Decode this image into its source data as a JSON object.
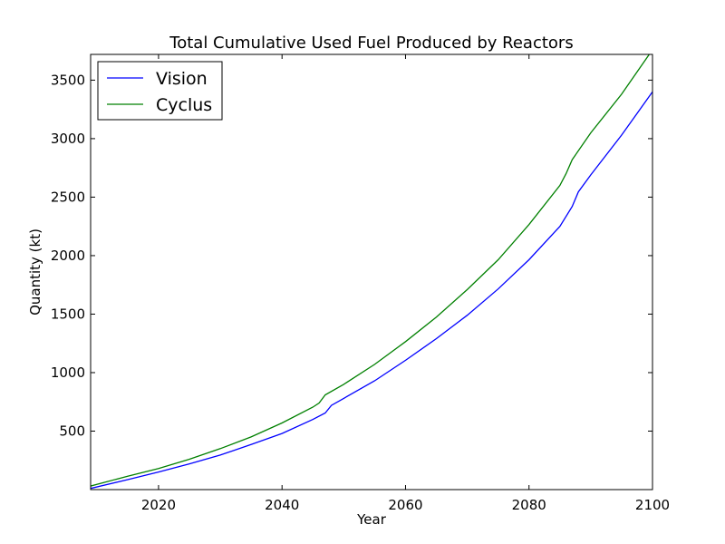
{
  "chart_data": {
    "type": "line",
    "title": "Total Cumulative Used Fuel Produced by Reactors",
    "xlabel": "Year",
    "ylabel": "Quantity (kt)",
    "xlim": [
      2009,
      2100
    ],
    "ylim": [
      0,
      3720
    ],
    "xticks": [
      2020,
      2040,
      2060,
      2080,
      2100
    ],
    "yticks": [
      500,
      1000,
      1500,
      2000,
      2500,
      3000,
      3500
    ],
    "grid": false,
    "legend_position": "top-left",
    "series": [
      {
        "name": "Vision",
        "color": "#0000ff",
        "x": [
          2009,
          2015,
          2020,
          2025,
          2030,
          2035,
          2040,
          2045,
          2047,
          2048,
          2050,
          2055,
          2060,
          2065,
          2070,
          2075,
          2080,
          2085,
          2087,
          2088,
          2090,
          2095,
          2100
        ],
        "y": [
          10,
          85,
          150,
          220,
          295,
          385,
          480,
          600,
          655,
          720,
          780,
          930,
          1105,
          1290,
          1490,
          1715,
          1965,
          2250,
          2420,
          2545,
          2690,
          3030,
          3400
        ]
      },
      {
        "name": "Cyclus",
        "color": "#008000",
        "x": [
          2009,
          2015,
          2020,
          2025,
          2030,
          2035,
          2040,
          2045,
          2046,
          2047,
          2050,
          2055,
          2060,
          2065,
          2070,
          2075,
          2080,
          2085,
          2086,
          2087,
          2090,
          2095,
          2100
        ],
        "y": [
          30,
          115,
          180,
          260,
          350,
          450,
          570,
          705,
          740,
          810,
          900,
          1070,
          1265,
          1475,
          1710,
          1965,
          2265,
          2600,
          2700,
          2820,
          3050,
          3380,
          3760
        ]
      }
    ]
  }
}
